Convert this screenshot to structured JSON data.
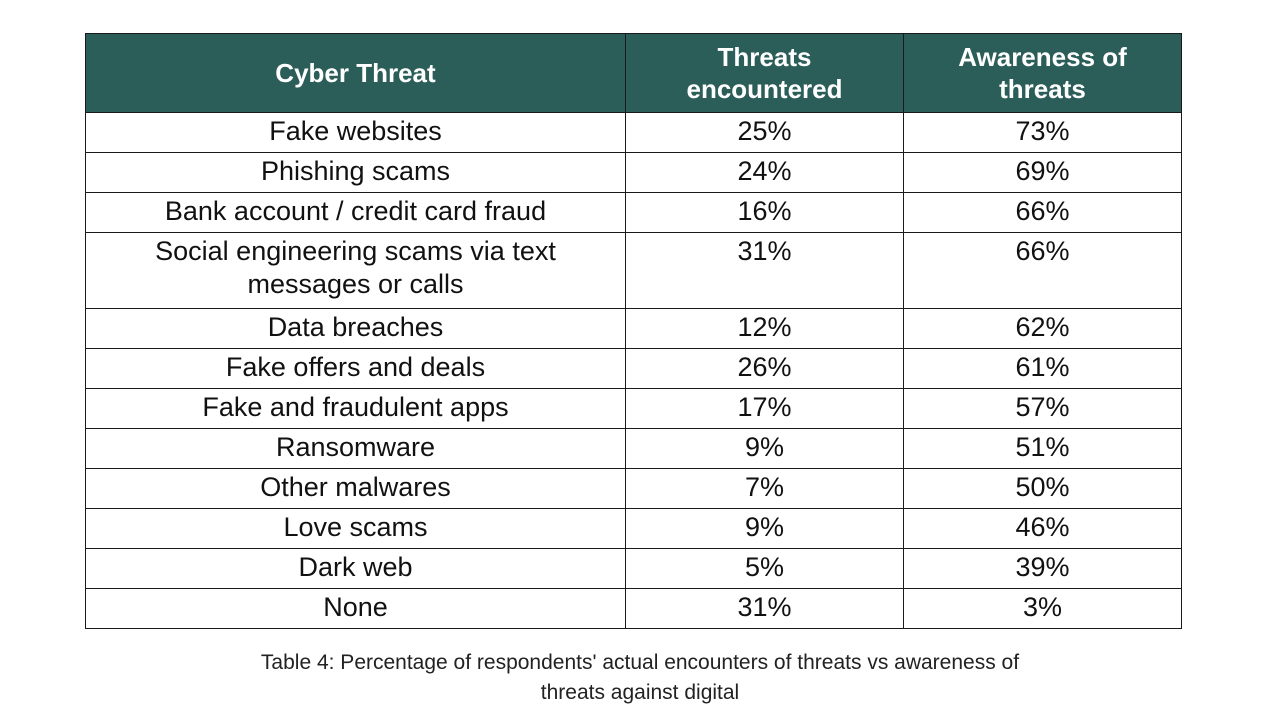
{
  "table": {
    "headers": {
      "threat": "Cyber Threat",
      "encountered_line1": "Threats",
      "encountered_line2": "encountered",
      "awareness_line1": "Awareness of",
      "awareness_line2": "threats"
    },
    "rows": [
      {
        "threat": "Fake websites",
        "encountered": "25%",
        "awareness": "73%"
      },
      {
        "threat": "Phishing scams",
        "encountered": "24%",
        "awareness": "69%"
      },
      {
        "threat": "Bank account / credit card fraud",
        "encountered": "16%",
        "awareness": "66%"
      },
      {
        "threat_line1": "Social engineering scams via text",
        "threat_line2": "messages or calls",
        "encountered": "31%",
        "awareness": "66%"
      },
      {
        "threat": "Data breaches",
        "encountered": "12%",
        "awareness": "62%"
      },
      {
        "threat": "Fake offers and deals",
        "encountered": "26%",
        "awareness": "61%"
      },
      {
        "threat": "Fake and fraudulent apps",
        "encountered": "17%",
        "awareness": "57%"
      },
      {
        "threat": "Ransomware",
        "encountered": "9%",
        "awareness": "51%"
      },
      {
        "threat": "Other malwares",
        "encountered": "7%",
        "awareness": "50%"
      },
      {
        "threat": "Love scams",
        "encountered": "9%",
        "awareness": "46%"
      },
      {
        "threat": "Dark web",
        "encountered": "5%",
        "awareness": "39%"
      },
      {
        "threat": "None",
        "encountered": "31%",
        "awareness": "3%"
      }
    ]
  },
  "caption": {
    "line1": "Table 4: Percentage of respondents' actual encounters of threats vs awareness of",
    "line2": "threats against digital"
  },
  "colors": {
    "header_bg": "#2b5d59",
    "header_text": "#ffffff",
    "border": "#1a1a1a"
  }
}
